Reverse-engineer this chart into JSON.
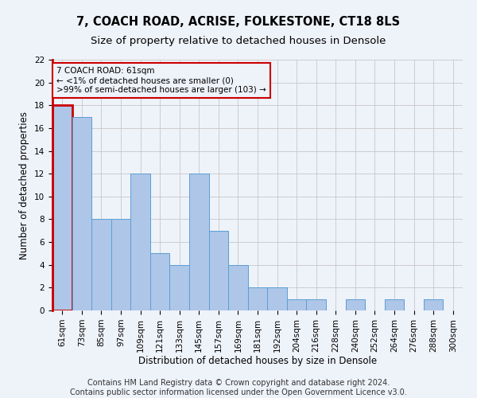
{
  "title1": "7, COACH ROAD, ACRISE, FOLKESTONE, CT18 8LS",
  "title2": "Size of property relative to detached houses in Densole",
  "xlabel": "Distribution of detached houses by size in Densole",
  "ylabel": "Number of detached properties",
  "categories": [
    "61sqm",
    "73sqm",
    "85sqm",
    "97sqm",
    "109sqm",
    "121sqm",
    "133sqm",
    "145sqm",
    "157sqm",
    "169sqm",
    "181sqm",
    "192sqm",
    "204sqm",
    "216sqm",
    "228sqm",
    "240sqm",
    "252sqm",
    "264sqm",
    "276sqm",
    "288sqm",
    "300sqm"
  ],
  "values": [
    18,
    17,
    8,
    8,
    12,
    5,
    4,
    12,
    7,
    4,
    2,
    2,
    1,
    1,
    0,
    1,
    0,
    1,
    0,
    1,
    0
  ],
  "bar_color": "#aec6e8",
  "bar_edge_color": "#5a9fd4",
  "highlight_bar_edge_color": "#cc0000",
  "highlight_bar_index": 0,
  "ylim": [
    0,
    22
  ],
  "yticks": [
    0,
    2,
    4,
    6,
    8,
    10,
    12,
    14,
    16,
    18,
    20,
    22
  ],
  "annotation_text": "7 COACH ROAD: 61sqm\n← <1% of detached houses are smaller (0)\n>99% of semi-detached houses are larger (103) →",
  "annotation_box_edge_color": "#cc0000",
  "footer_text": "Contains HM Land Registry data © Crown copyright and database right 2024.\nContains public sector information licensed under the Open Government Licence v3.0.",
  "bg_color": "#eef2f9",
  "grid_color": "#c8c8c8",
  "title_fontsize": 10.5,
  "subtitle_fontsize": 9.5,
  "tick_fontsize": 7.5,
  "ylabel_fontsize": 8.5,
  "xlabel_fontsize": 8.5,
  "footer_fontsize": 7.0,
  "annotation_fontsize": 7.5
}
